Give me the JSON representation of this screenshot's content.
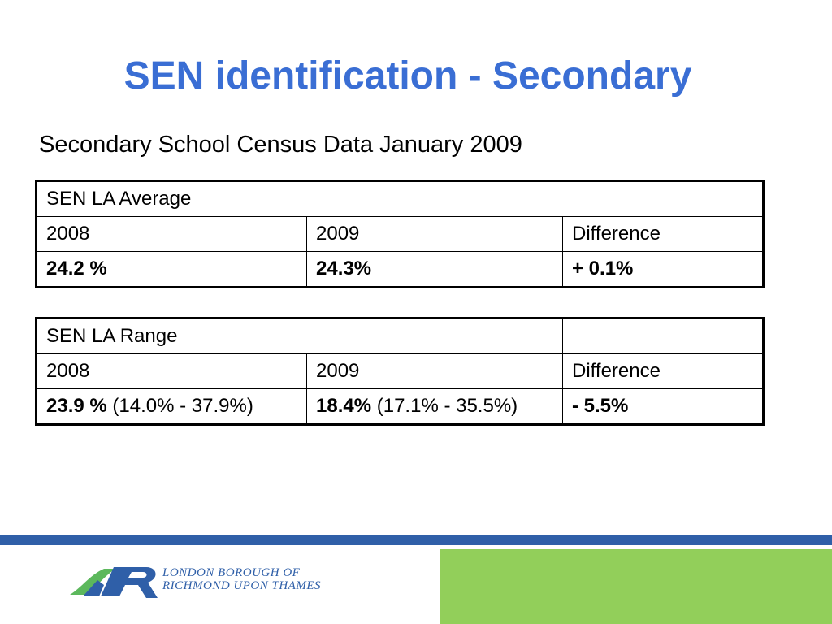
{
  "slide": {
    "title": "SEN identification - Secondary",
    "subtitle": "Secondary School Census Data January 2009"
  },
  "average_table": {
    "header": "SEN LA Average",
    "col_2008": "2008",
    "col_2009": "2009",
    "col_diff": "Difference",
    "val_2008": "24.2 %",
    "val_2009": "24.3%",
    "val_diff": "+ 0.1%"
  },
  "range_table": {
    "header": "SEN LA Range",
    "col_2008": "2008",
    "col_2009": "2009",
    "col_diff": "Difference",
    "val_2008": "23.9 %",
    "range_2008": "(14.0% - 37.9%)",
    "val_2009": "18.4%",
    "range_2009": "(17.1% - 35.5%)",
    "val_diff": "- 5.5%"
  },
  "footer": {
    "org_line_1": "LONDON BOROUGH OF",
    "org_line_2": "RICHMOND UPON THAMES",
    "colors": {
      "stripe": "#2f5fa8",
      "green_block": "#92cf5a",
      "logo_blue": "#2f5fa8",
      "logo_green": "#5cb85c"
    },
    "logo_icon": "richmond-r-logo"
  }
}
